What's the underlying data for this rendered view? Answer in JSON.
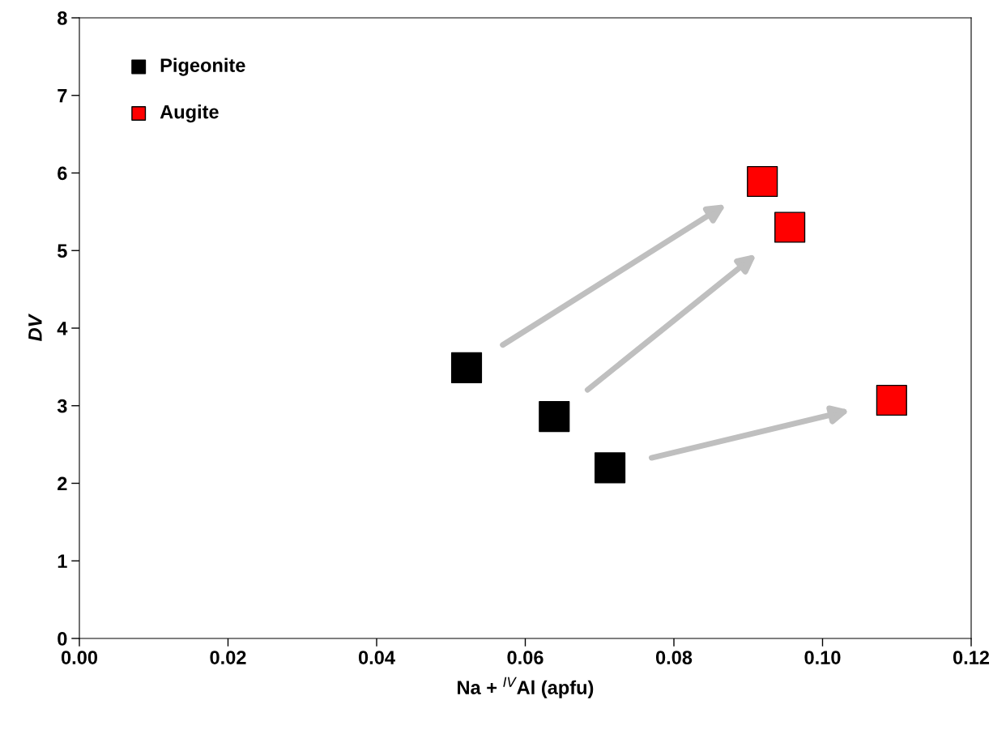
{
  "chart_data": {
    "type": "scatter",
    "xlabel": "Na + $^{IV}$Al (apfu)",
    "ylabel": "DV",
    "series": [
      {
        "name": "Pigeonite",
        "color": "#000000",
        "x": [
          0.0521,
          0.0639,
          0.0714
        ],
        "values": [
          3.49,
          2.86,
          2.2
        ]
      },
      {
        "name": "Augite",
        "color": "#ff0000",
        "x": [
          0.0919,
          0.0956,
          0.1093
        ],
        "values": [
          5.89,
          5.3,
          3.07
        ]
      }
    ],
    "xlim": [
      0,
      0.12
    ],
    "xticks": [
      {
        "value": 0,
        "label": "0.00"
      },
      {
        "value": 0.02,
        "label": "0.02"
      },
      {
        "value": 0.04,
        "label": "0.04"
      },
      {
        "value": 0.06,
        "label": "0.06"
      },
      {
        "value": 0.08,
        "label": "0.08"
      },
      {
        "value": 0.1,
        "label": "0.10"
      },
      {
        "value": 0.12,
        "label": "0.12"
      }
    ],
    "ylim": [
      0,
      8
    ],
    "yticks": [
      0,
      1,
      2,
      3,
      4,
      5,
      6,
      7,
      8
    ],
    "marker": "square",
    "grid": false,
    "legend": "top left"
  }
}
